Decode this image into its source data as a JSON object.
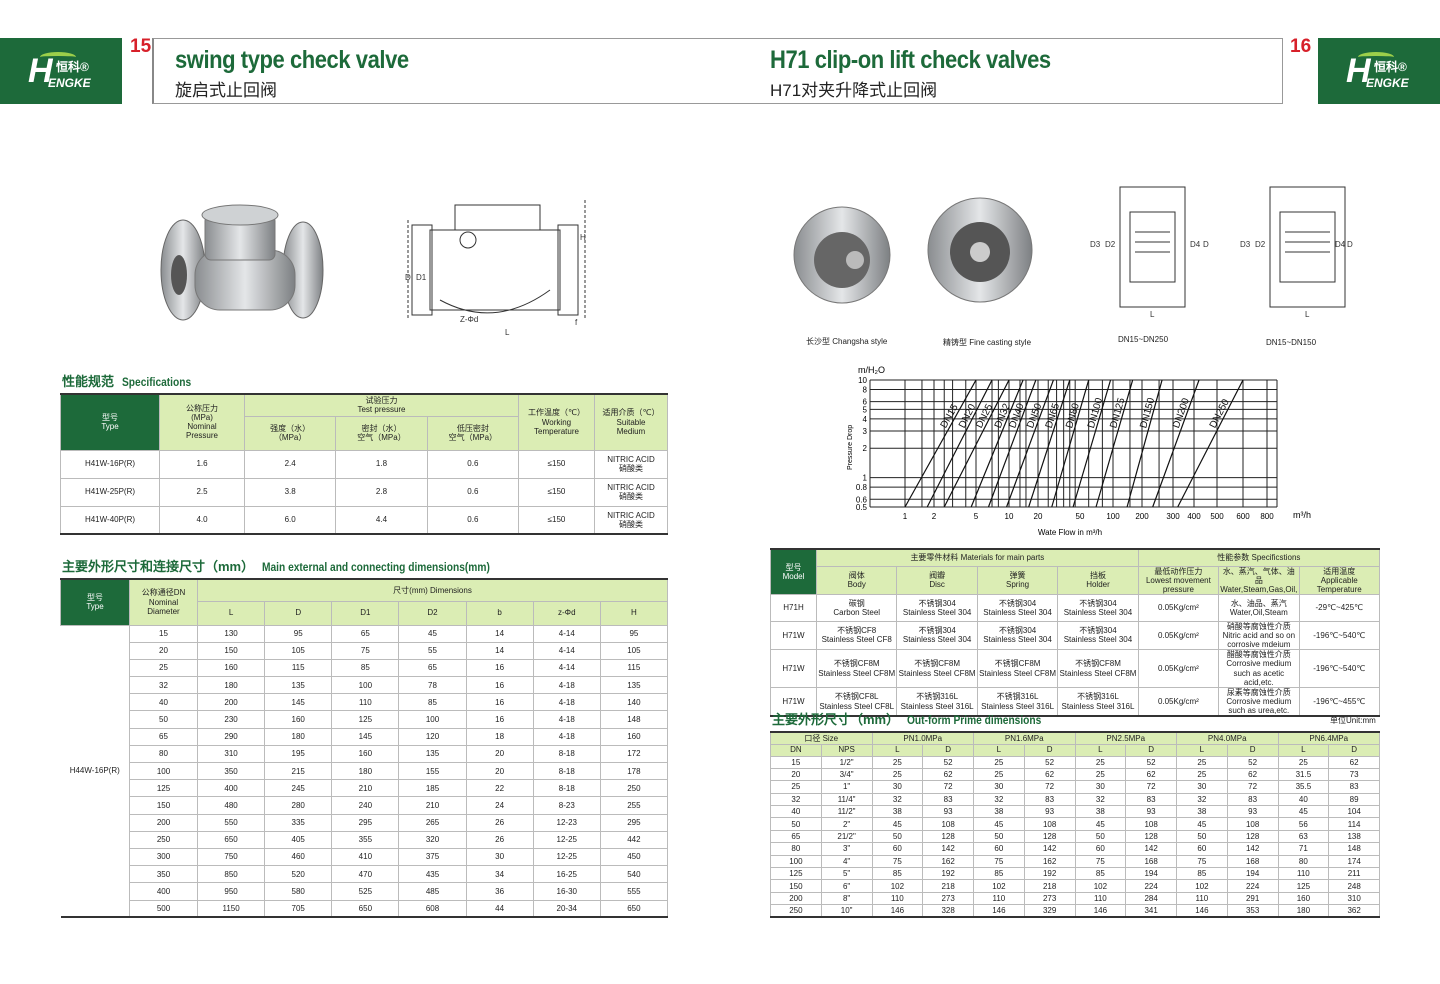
{
  "brand": {
    "logo_text": "HENGKE",
    "logo_cn": "恒科",
    "color": "#1d6a3a",
    "accent_red": "#d7202a",
    "header_green": "#dbedb4"
  },
  "left_page": {
    "page_number": "15",
    "title": "swing type check valve",
    "subtitle": "旋启式止回阀",
    "drawing_labels": [
      "D",
      "D1",
      "DN",
      "D2",
      "H",
      "Z-Φd",
      "L",
      "b",
      "f"
    ],
    "spec_section": {
      "title_cn": "性能规范",
      "title_en": "Specifications",
      "headers": {
        "type": "型号\nType",
        "nominal": "公称压力\n(MPa)\nNominal\nPressure",
        "test": "试验压力\nTest pressure",
        "strength": "强度（水）\n（MPa）",
        "seal_water": "密封（水）\n空气（MPa）",
        "low_seal": "低压密封\n空气（MPa）",
        "temp": "工作温度（℃）\nWorking\nTemperature",
        "medium": "适用介质（℃）\nSuitable\nMedium"
      },
      "rows": [
        [
          "H41W-16P(R)",
          "1.6",
          "2.4",
          "1.8",
          "0.6",
          "≤150",
          "NITRIC ACID\n硝酸类"
        ],
        [
          "H41W-25P(R)",
          "2.5",
          "3.8",
          "2.8",
          "0.6",
          "≤150",
          "NITRIC ACID\n硝酸类"
        ],
        [
          "H41W-40P(R)",
          "4.0",
          "6.0",
          "4.4",
          "0.6",
          "≤150",
          "NITRIC ACID\n硝酸类"
        ]
      ]
    },
    "dim_section": {
      "title_cn": "主要外形尺寸和连接尺寸（mm）",
      "title_en": "Main external and connecting dimensions(mm)",
      "headers": {
        "type": "型号\nType",
        "dn": "公称通径DN\nNominal\nDiameter",
        "dims": "尺寸(mm) Dimensions",
        "cols": [
          "L",
          "D",
          "D1",
          "D2",
          "b",
          "z-Φd",
          "H"
        ]
      },
      "model": "H44W-16P(R)",
      "rows": [
        [
          "15",
          "130",
          "95",
          "65",
          "45",
          "14",
          "4-14",
          "95"
        ],
        [
          "20",
          "150",
          "105",
          "75",
          "55",
          "14",
          "4-14",
          "105"
        ],
        [
          "25",
          "160",
          "115",
          "85",
          "65",
          "16",
          "4-14",
          "115"
        ],
        [
          "32",
          "180",
          "135",
          "100",
          "78",
          "16",
          "4-18",
          "135"
        ],
        [
          "40",
          "200",
          "145",
          "110",
          "85",
          "16",
          "4-18",
          "140"
        ],
        [
          "50",
          "230",
          "160",
          "125",
          "100",
          "16",
          "4-18",
          "148"
        ],
        [
          "65",
          "290",
          "180",
          "145",
          "120",
          "18",
          "4-18",
          "160"
        ],
        [
          "80",
          "310",
          "195",
          "160",
          "135",
          "20",
          "8-18",
          "172"
        ],
        [
          "100",
          "350",
          "215",
          "180",
          "155",
          "20",
          "8-18",
          "178"
        ],
        [
          "125",
          "400",
          "245",
          "210",
          "185",
          "22",
          "8-18",
          "250"
        ],
        [
          "150",
          "480",
          "280",
          "240",
          "210",
          "24",
          "8-23",
          "255"
        ],
        [
          "200",
          "550",
          "335",
          "295",
          "265",
          "26",
          "12-23",
          "295"
        ],
        [
          "250",
          "650",
          "405",
          "355",
          "320",
          "26",
          "12-25",
          "442"
        ],
        [
          "300",
          "750",
          "460",
          "410",
          "375",
          "30",
          "12-25",
          "450"
        ],
        [
          "350",
          "850",
          "520",
          "470",
          "435",
          "34",
          "16-25",
          "540"
        ],
        [
          "400",
          "950",
          "580",
          "525",
          "485",
          "36",
          "16-30",
          "555"
        ],
        [
          "500",
          "1150",
          "705",
          "650",
          "608",
          "44",
          "20-34",
          "650"
        ]
      ]
    }
  },
  "right_page": {
    "page_number": "16",
    "title": "H71 clip-on lift check valves",
    "subtitle": "H71对夹升降式止回阀",
    "captions": [
      "长沙型 Changsha style",
      "精铸型 Fine casting style",
      "DN15~DN250",
      "DN15~DN150"
    ],
    "drawing_labels": [
      "D3",
      "D2",
      "D4",
      "D",
      "L"
    ],
    "materials": {
      "headers": {
        "model": "型号\nModel",
        "materials": "主要零件材料 Materials for main parts",
        "specs": "性能参数 Specificstions",
        "cols": [
          "阀体\nBody",
          "阀瓣\nDisc",
          "弹簧\nSpring",
          "挡板\nHolder",
          "最低动作压力\nLowest movement\npressure",
          "水、蒸汽、气体、油品\nWater,Steam,Gas,Oil,",
          "适用温度\nApplicable\nTemperature"
        ]
      },
      "rows": [
        [
          "H71H",
          "碳钢\nCarbon Steel",
          "不锈钢304\nStainless Steel 304",
          "不锈钢304\nStainless Steel 304",
          "不锈钢304\nStainless Steel 304",
          "0.05Kg/cm²",
          "水、油品、蒸汽\nWater,Oil,Steam",
          "-29℃~425℃"
        ],
        [
          "H71W",
          "不锈钢CF8\nStainless Steel CF8",
          "不锈钢304\nStainless Steel 304",
          "不锈钢304\nStainless Steel 304",
          "不锈钢304\nStainless Steel 304",
          "0.05Kg/cm²",
          "硝酸等腐蚀性介质\nNitric acid and so on corrosive mdeium",
          "-196℃~540℃"
        ],
        [
          "H71W",
          "不锈钢CF8M\nStainless Steel CF8M",
          "不锈钢CF8M\nStainless Steel CF8M",
          "不锈钢CF8M\nStainless Steel CF8M",
          "不锈钢CF8M\nStainless Steel CF8M",
          "0.05Kg/cm²",
          "醋酸等腐蚀性介质\nCorrosive medium such as acetic acid,etc.",
          "-196℃~540℃"
        ],
        [
          "H71W",
          "不锈钢CF8L\nStainless Steel CF8L",
          "不锈钢316L\nStainless Steel 316L",
          "不锈钢316L\nStainless Steel 316L",
          "不锈钢316L\nStainless Steel 316L",
          "0.05Kg/cm²",
          "尿素等腐蚀性介质\nCorrosive medium such as urea,etc.",
          "-196℃~455℃"
        ]
      ]
    },
    "outform": {
      "title_cn": "主要外形尺寸（mm）",
      "title_en": "Out-form Prime dimensions",
      "unit": "单位Unit:mm",
      "headers": {
        "size": "口径 Size",
        "groups": [
          "PN1.0MPa",
          "PN1.6MPa",
          "PN2.5MPa",
          "PN4.0MPa",
          "PN6.4MPa"
        ],
        "cols": [
          "DN",
          "NPS",
          "L",
          "D",
          "L",
          "D",
          "L",
          "D",
          "L",
          "D",
          "L",
          "D"
        ]
      },
      "rows": [
        [
          "15",
          "1/2\"",
          "25",
          "52",
          "25",
          "52",
          "25",
          "52",
          "25",
          "52",
          "25",
          "62"
        ],
        [
          "20",
          "3/4\"",
          "25",
          "62",
          "25",
          "62",
          "25",
          "62",
          "25",
          "62",
          "31.5",
          "73"
        ],
        [
          "25",
          "1\"",
          "30",
          "72",
          "30",
          "72",
          "30",
          "72",
          "30",
          "72",
          "35.5",
          "83"
        ],
        [
          "32",
          "11/4\"",
          "32",
          "83",
          "32",
          "83",
          "32",
          "83",
          "32",
          "83",
          "40",
          "89"
        ],
        [
          "40",
          "11/2\"",
          "38",
          "93",
          "38",
          "93",
          "38",
          "93",
          "38",
          "93",
          "45",
          "104"
        ],
        [
          "50",
          "2\"",
          "45",
          "108",
          "45",
          "108",
          "45",
          "108",
          "45",
          "108",
          "56",
          "114"
        ],
        [
          "65",
          "21/2\"",
          "50",
          "128",
          "50",
          "128",
          "50",
          "128",
          "50",
          "128",
          "63",
          "138"
        ],
        [
          "80",
          "3\"",
          "60",
          "142",
          "60",
          "142",
          "60",
          "142",
          "60",
          "142",
          "71",
          "148"
        ],
        [
          "100",
          "4\"",
          "75",
          "162",
          "75",
          "162",
          "75",
          "168",
          "75",
          "168",
          "80",
          "174"
        ],
        [
          "125",
          "5\"",
          "85",
          "192",
          "85",
          "192",
          "85",
          "194",
          "85",
          "194",
          "110",
          "211"
        ],
        [
          "150",
          "6\"",
          "102",
          "218",
          "102",
          "218",
          "102",
          "224",
          "102",
          "224",
          "125",
          "248"
        ],
        [
          "200",
          "8\"",
          "110",
          "273",
          "110",
          "273",
          "110",
          "284",
          "110",
          "291",
          "160",
          "310"
        ],
        [
          "250",
          "10\"",
          "146",
          "328",
          "146",
          "329",
          "146",
          "341",
          "146",
          "353",
          "180",
          "362"
        ]
      ]
    }
  },
  "chart_data": {
    "type": "line",
    "title": "",
    "ylabel": "Pressure Drop",
    "yunit": "m/H2O",
    "xlabel": "Wate Flow in m³/h",
    "xunit": "m³/h",
    "xscale": "log",
    "yscale": "log",
    "grid": true,
    "xticks": [
      1,
      2,
      5,
      10,
      20,
      50,
      100,
      200,
      300,
      400,
      500,
      600,
      800
    ],
    "yticks": [
      0.5,
      0.6,
      0.8,
      1,
      2,
      3,
      4,
      5,
      6,
      8,
      10
    ],
    "ylim": [
      0.5,
      10
    ],
    "series": [
      {
        "name": "DN15",
        "x": [
          1,
          5
        ],
        "y": [
          0.5,
          10
        ]
      },
      {
        "name": "DN20",
        "x": [
          1.7,
          7
        ],
        "y": [
          0.5,
          10
        ]
      },
      {
        "name": "DN25",
        "x": [
          2.5,
          10
        ],
        "y": [
          0.5,
          10
        ]
      },
      {
        "name": "DN32",
        "x": [
          4.5,
          14
        ],
        "y": [
          0.5,
          10
        ]
      },
      {
        "name": "DN40",
        "x": [
          6.5,
          19
        ],
        "y": [
          0.5,
          10
        ]
      },
      {
        "name": "DN50",
        "x": [
          9.5,
          28
        ],
        "y": [
          0.5,
          10
        ]
      },
      {
        "name": "DN65",
        "x": [
          16,
          40
        ],
        "y": [
          0.5,
          10
        ]
      },
      {
        "name": "DN80",
        "x": [
          27,
          60
        ],
        "y": [
          0.5,
          10
        ]
      },
      {
        "name": "DN100",
        "x": [
          43,
          95
        ],
        "y": [
          0.5,
          10
        ]
      },
      {
        "name": "DN125",
        "x": [
          70,
          160
        ],
        "y": [
          0.5,
          10
        ]
      },
      {
        "name": "DN150",
        "x": [
          140,
          260
        ],
        "y": [
          0.5,
          10
        ]
      },
      {
        "name": "DN200",
        "x": [
          230,
          420
        ],
        "y": [
          0.5,
          10
        ]
      },
      {
        "name": "DN250",
        "x": [
          320,
          600
        ],
        "y": [
          0.5,
          10
        ]
      }
    ]
  }
}
